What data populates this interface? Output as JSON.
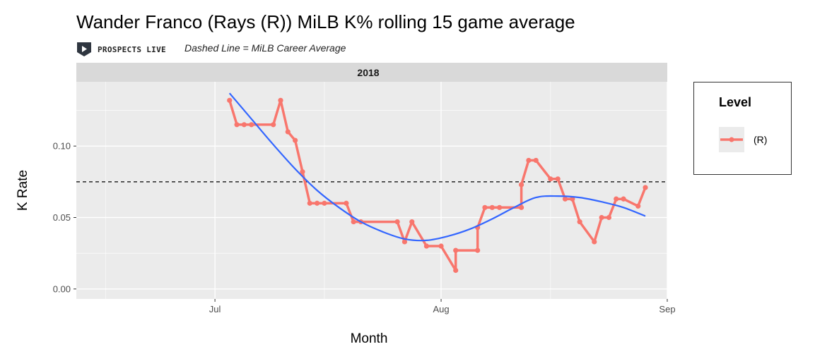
{
  "header": {
    "title": "Wander Franco (Rays (R)) MiLB K% rolling 15 game average",
    "brand": "PROSPECTS LIVE",
    "subtitle": "Dashed Line = MiLB Career Average"
  },
  "chart_data": {
    "type": "line",
    "facet_label": "2018",
    "xlabel": "Month",
    "ylabel": "K Rate",
    "x_ticks": [
      "Jul",
      "Aug",
      "Sep"
    ],
    "y_ticks": [
      "0.00",
      "0.05",
      "0.10"
    ],
    "ylim": [
      -0.007,
      0.145
    ],
    "xlim": [
      "2018-06-12",
      "2018-09-01"
    ],
    "grid": true,
    "career_average": 0.075,
    "legend": {
      "title": "Level",
      "position": "right",
      "items": [
        {
          "label": "(R)",
          "color": "#F8766D"
        }
      ]
    },
    "series": [
      {
        "name": "(R)",
        "color": "#F8766D",
        "points": [
          {
            "x": "2018-07-03",
            "y": 0.132
          },
          {
            "x": "2018-07-04",
            "y": 0.115
          },
          {
            "x": "2018-07-05",
            "y": 0.115
          },
          {
            "x": "2018-07-06",
            "y": 0.115
          },
          {
            "x": "2018-07-09",
            "y": 0.115
          },
          {
            "x": "2018-07-10",
            "y": 0.132
          },
          {
            "x": "2018-07-11",
            "y": 0.11
          },
          {
            "x": "2018-07-12",
            "y": 0.104
          },
          {
            "x": "2018-07-13",
            "y": 0.082
          },
          {
            "x": "2018-07-14",
            "y": 0.06
          },
          {
            "x": "2018-07-15",
            "y": 0.06
          },
          {
            "x": "2018-07-16",
            "y": 0.06
          },
          {
            "x": "2018-07-19",
            "y": 0.06
          },
          {
            "x": "2018-07-20",
            "y": 0.047
          },
          {
            "x": "2018-07-21",
            "y": 0.047
          },
          {
            "x": "2018-07-26",
            "y": 0.047
          },
          {
            "x": "2018-07-27",
            "y": 0.033
          },
          {
            "x": "2018-07-28",
            "y": 0.047
          },
          {
            "x": "2018-07-30",
            "y": 0.03
          },
          {
            "x": "2018-08-01",
            "y": 0.03
          },
          {
            "x": "2018-08-03",
            "y": 0.013
          },
          {
            "x": "2018-08-03",
            "y": 0.027
          },
          {
            "x": "2018-08-06",
            "y": 0.027
          },
          {
            "x": "2018-08-06",
            "y": 0.043
          },
          {
            "x": "2018-08-07",
            "y": 0.057
          },
          {
            "x": "2018-08-08",
            "y": 0.057
          },
          {
            "x": "2018-08-09",
            "y": 0.057
          },
          {
            "x": "2018-08-12",
            "y": 0.057
          },
          {
            "x": "2018-08-12",
            "y": 0.073
          },
          {
            "x": "2018-08-13",
            "y": 0.09
          },
          {
            "x": "2018-08-14",
            "y": 0.09
          },
          {
            "x": "2018-08-16",
            "y": 0.077
          },
          {
            "x": "2018-08-17",
            "y": 0.077
          },
          {
            "x": "2018-08-18",
            "y": 0.063
          },
          {
            "x": "2018-08-19",
            "y": 0.063
          },
          {
            "x": "2018-08-20",
            "y": 0.047
          },
          {
            "x": "2018-08-22",
            "y": 0.033
          },
          {
            "x": "2018-08-23",
            "y": 0.05
          },
          {
            "x": "2018-08-24",
            "y": 0.05
          },
          {
            "x": "2018-08-25",
            "y": 0.063
          },
          {
            "x": "2018-08-26",
            "y": 0.063
          },
          {
            "x": "2018-08-28",
            "y": 0.058
          },
          {
            "x": "2018-08-29",
            "y": 0.071
          }
        ]
      }
    ],
    "smooth": {
      "color": "#3366FF",
      "points": [
        {
          "x": "2018-07-03",
          "y": 0.137
        },
        {
          "x": "2018-07-06",
          "y": 0.119
        },
        {
          "x": "2018-07-09",
          "y": 0.101
        },
        {
          "x": "2018-07-12",
          "y": 0.084
        },
        {
          "x": "2018-07-15",
          "y": 0.069
        },
        {
          "x": "2018-07-18",
          "y": 0.057
        },
        {
          "x": "2018-07-21",
          "y": 0.047
        },
        {
          "x": "2018-07-24",
          "y": 0.04
        },
        {
          "x": "2018-07-27",
          "y": 0.035
        },
        {
          "x": "2018-07-30",
          "y": 0.034
        },
        {
          "x": "2018-08-02",
          "y": 0.037
        },
        {
          "x": "2018-08-05",
          "y": 0.042
        },
        {
          "x": "2018-08-08",
          "y": 0.049
        },
        {
          "x": "2018-08-11",
          "y": 0.057
        },
        {
          "x": "2018-08-14",
          "y": 0.064
        },
        {
          "x": "2018-08-17",
          "y": 0.065
        },
        {
          "x": "2018-08-20",
          "y": 0.064
        },
        {
          "x": "2018-08-23",
          "y": 0.061
        },
        {
          "x": "2018-08-26",
          "y": 0.057
        },
        {
          "x": "2018-08-29",
          "y": 0.051
        }
      ]
    }
  }
}
